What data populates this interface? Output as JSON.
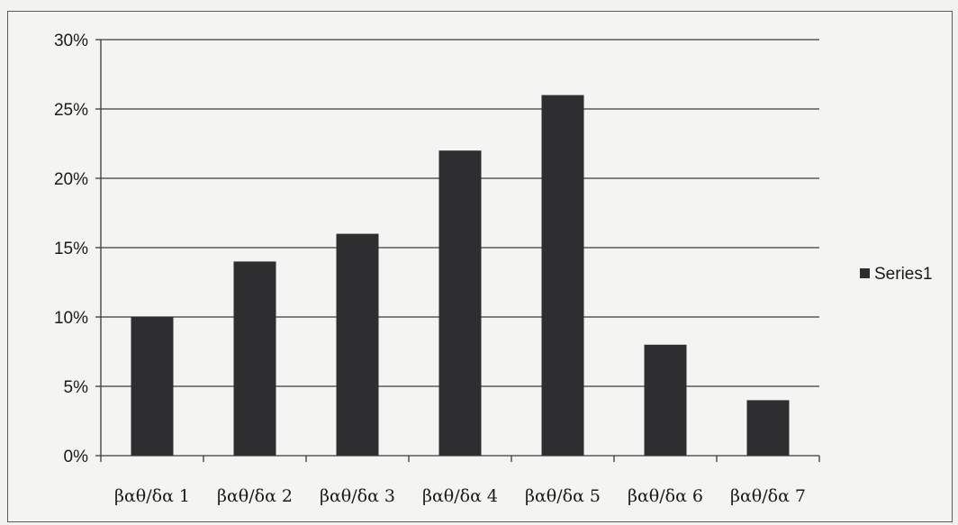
{
  "chart_data": {
    "type": "bar",
    "categories": [
      "βαθ/δα 1",
      "βαθ/δα 2",
      "βαθ/δα 3",
      "βαθ/δα 4",
      "βαθ/δα 5",
      "βαθ/δα 6",
      "βαθ/δα 7"
    ],
    "series": [
      {
        "name": "Series1",
        "values": [
          0.1,
          0.14,
          0.16,
          0.22,
          0.26,
          0.08,
          0.04
        ]
      }
    ],
    "ylim": [
      0,
      0.3
    ],
    "yticks": [
      0,
      0.05,
      0.1,
      0.15,
      0.2,
      0.25,
      0.3
    ],
    "ytick_labels": [
      "0%",
      "5%",
      "10%",
      "15%",
      "20%",
      "25%",
      "30%"
    ],
    "grid": true,
    "legend_position": "right",
    "colors": {
      "bar": "#2e2e30",
      "grid": "#3a3a3a",
      "axis": "#3a3a3a"
    }
  }
}
